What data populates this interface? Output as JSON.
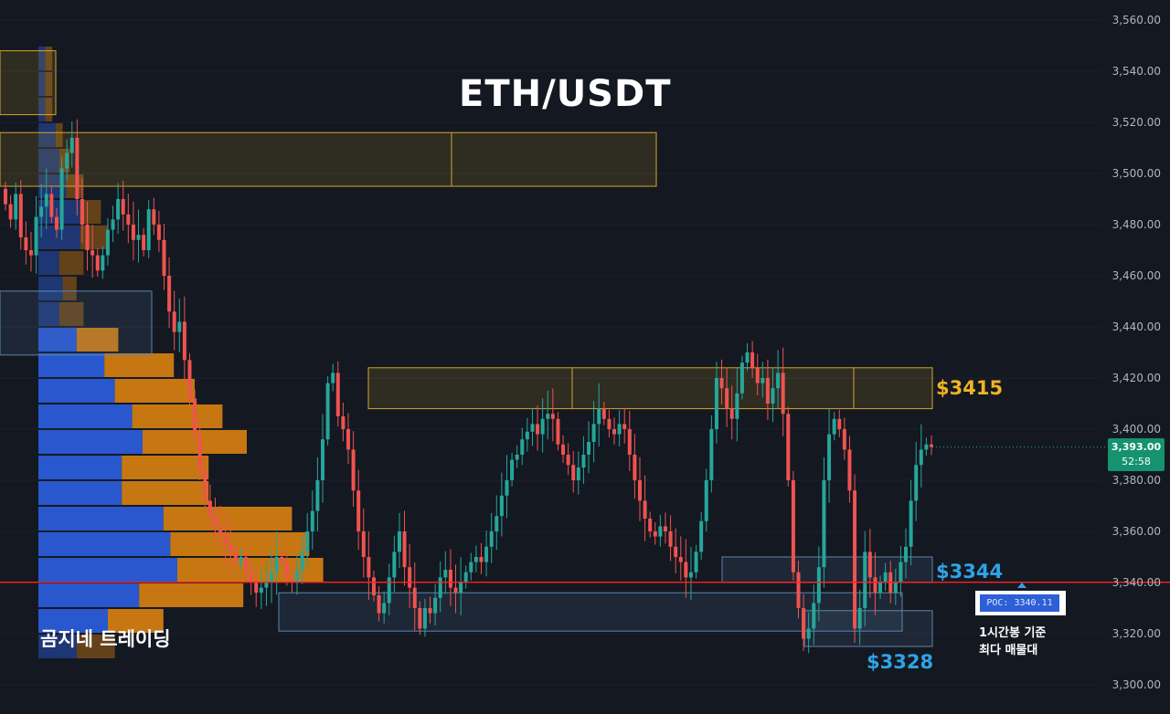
{
  "title": "ETH/USDT",
  "watermark": "곰지네 트레이딩",
  "price_levels": {
    "upper_label": "$3415",
    "middle_label": "$3344",
    "lower_label": "$3328"
  },
  "poc": {
    "label": "POC: 3340.11",
    "note_line1": "1시간봉 기준",
    "note_line2": "최다 매물대"
  },
  "current_price": {
    "price": "3,393.00",
    "countdown": "52:58"
  },
  "colors": {
    "background": "#141821",
    "bull": "#26a69a",
    "bear": "#ef5350",
    "zone_gold": "#d4a72c",
    "zone_blue": "#5a86b0",
    "poc_line": "#ff1f1f",
    "vp_blue": "#2a5bd7",
    "vp_orange": "#d9820f",
    "label_gold": "#f0b323",
    "label_blue": "#2fa3e6"
  },
  "chart_data": {
    "type": "candlestick",
    "title": "ETH/USDT",
    "timeframe": "1h",
    "ylim": [
      3300,
      3560
    ],
    "y_ticks": [
      "3,300.00",
      "3,320.00",
      "3,340.00",
      "3,360.00",
      "3,380.00",
      "3,400.00",
      "3,420.00",
      "3,440.00",
      "3,460.00",
      "3,480.00",
      "3,500.00",
      "3,520.00",
      "3,540.00",
      "3,560.00"
    ],
    "closes": [
      3488,
      3482,
      3492,
      3475,
      3470,
      3468,
      3483,
      3487,
      3492,
      3483,
      3478,
      3502,
      3508,
      3514,
      3490,
      3480,
      3470,
      3468,
      3462,
      3468,
      3478,
      3482,
      3490,
      3484,
      3480,
      3474,
      3476,
      3470,
      3486,
      3480,
      3474,
      3460,
      3446,
      3438,
      3442,
      3427,
      3412,
      3398,
      3384,
      3372,
      3366,
      3362,
      3358,
      3355,
      3352,
      3348,
      3350,
      3344,
      3340,
      3336,
      3338,
      3340,
      3344,
      3350,
      3348,
      3342,
      3340,
      3345,
      3352,
      3360,
      3368,
      3380,
      3396,
      3418,
      3422,
      3405,
      3400,
      3392,
      3376,
      3360,
      3350,
      3342,
      3335,
      3328,
      3332,
      3342,
      3352,
      3360,
      3346,
      3338,
      3330,
      3322,
      3330,
      3328,
      3334,
      3342,
      3345,
      3338,
      3336,
      3340,
      3344,
      3348,
      3350,
      3348,
      3354,
      3360,
      3366,
      3374,
      3380,
      3388,
      3390,
      3396,
      3399,
      3402,
      3398,
      3404,
      3406,
      3404,
      3394,
      3390,
      3386,
      3380,
      3385,
      3390,
      3395,
      3402,
      3408,
      3404,
      3400,
      3398,
      3402,
      3400,
      3390,
      3380,
      3372,
      3365,
      3360,
      3358,
      3362,
      3360,
      3354,
      3350,
      3348,
      3342,
      3344,
      3352,
      3364,
      3380,
      3400,
      3420,
      3416,
      3408,
      3404,
      3414,
      3426,
      3430,
      3424,
      3418,
      3420,
      3410,
      3416,
      3422,
      3406,
      3380,
      3344,
      3330,
      3318,
      3322,
      3332,
      3346,
      3380,
      3398,
      3404,
      3400,
      3392,
      3376,
      3322,
      3330,
      3352,
      3342,
      3336,
      3340,
      3344,
      3336,
      3340,
      3348,
      3354,
      3372,
      3386,
      3392,
      3394,
      3393
    ],
    "zones": [
      {
        "name": "resistance-zone-top",
        "color": "gold",
        "y_top": 3516,
        "y_bottom": 3495
      },
      {
        "name": "resistance-zone-upper-left",
        "color": "gold",
        "y_top": 3548,
        "y_bottom": 3523
      },
      {
        "name": "resistance-zone-3415",
        "color": "gold",
        "y_top": 3424,
        "y_bottom": 3408
      },
      {
        "name": "support-zone-3344",
        "color": "blue",
        "y_top": 3350,
        "y_bottom": 3340
      },
      {
        "name": "support-zone-3328",
        "color": "blue",
        "y_top": 3336,
        "y_bottom": 3321
      },
      {
        "name": "support-zone-3328-lower",
        "color": "blue",
        "y_top": 3329,
        "y_bottom": 3315
      },
      {
        "name": "zone-left-mid",
        "color": "blue",
        "y_top": 3454,
        "y_bottom": 3429
      }
    ],
    "poc_line": 3340.11,
    "current_price": 3393.0,
    "volume_profile": [
      {
        "price": 3545,
        "buy": 2,
        "sell": 2
      },
      {
        "price": 3535,
        "buy": 2,
        "sell": 2
      },
      {
        "price": 3525,
        "buy": 2,
        "sell": 2
      },
      {
        "price": 3515,
        "buy": 5,
        "sell": 2
      },
      {
        "price": 3505,
        "buy": 6,
        "sell": 3
      },
      {
        "price": 3495,
        "buy": 8,
        "sell": 5
      },
      {
        "price": 3485,
        "buy": 12,
        "sell": 6
      },
      {
        "price": 3475,
        "buy": 12,
        "sell": 8
      },
      {
        "price": 3465,
        "buy": 6,
        "sell": 7
      },
      {
        "price": 3455,
        "buy": 7,
        "sell": 4
      },
      {
        "price": 3445,
        "buy": 6,
        "sell": 7
      },
      {
        "price": 3435,
        "buy": 11,
        "sell": 12
      },
      {
        "price": 3425,
        "buy": 19,
        "sell": 20
      },
      {
        "price": 3415,
        "buy": 22,
        "sell": 23
      },
      {
        "price": 3405,
        "buy": 27,
        "sell": 26
      },
      {
        "price": 3395,
        "buy": 30,
        "sell": 30
      },
      {
        "price": 3385,
        "buy": 24,
        "sell": 25
      },
      {
        "price": 3375,
        "buy": 24,
        "sell": 25
      },
      {
        "price": 3365,
        "buy": 36,
        "sell": 37
      },
      {
        "price": 3355,
        "buy": 38,
        "sell": 40
      },
      {
        "price": 3345,
        "buy": 40,
        "sell": 42
      },
      {
        "price": 3335,
        "buy": 29,
        "sell": 30
      },
      {
        "price": 3325,
        "buy": 20,
        "sell": 16
      },
      {
        "price": 3315,
        "buy": 11,
        "sell": 11
      }
    ]
  }
}
